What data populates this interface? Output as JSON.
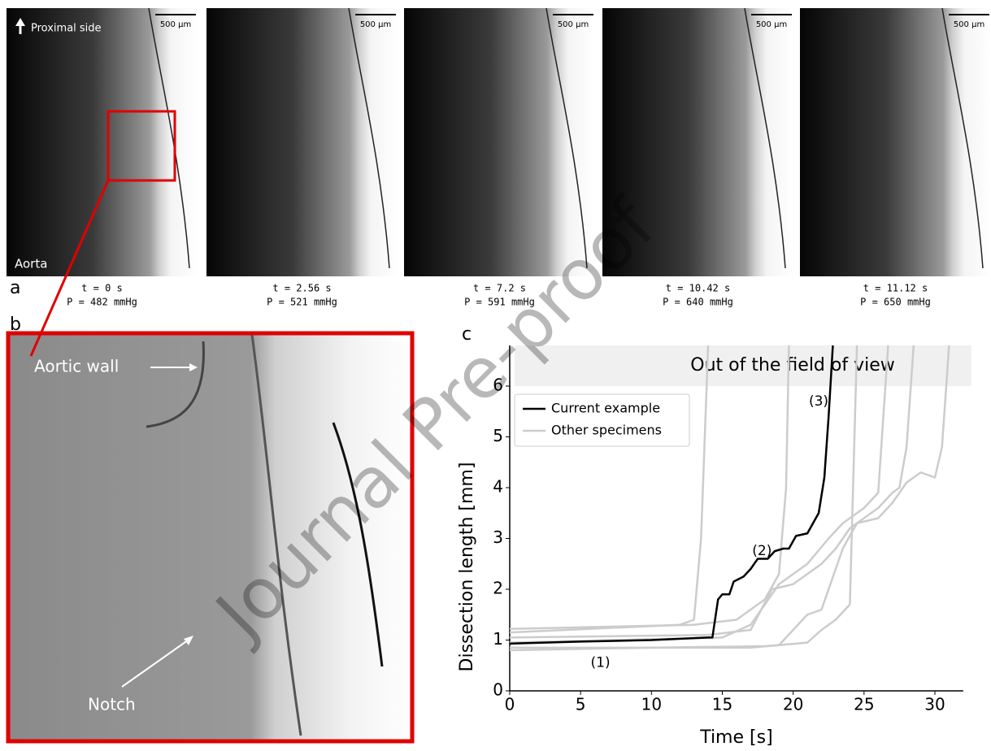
{
  "panel_a": {
    "label": "a",
    "direction_label": "Proximal side",
    "region_label": "Aorta",
    "frames": [
      {
        "scale_bar": "500 µm",
        "time": "t = 0 s",
        "pressure": "P = 482 mmHg"
      },
      {
        "scale_bar": "500 µm",
        "time": "t = 2.56 s",
        "pressure": "P = 521 mmHg"
      },
      {
        "scale_bar": "500 µm",
        "time": "t = 7.2 s",
        "pressure": "P = 591 mmHg"
      },
      {
        "scale_bar": "500 µm",
        "time": "t = 10.42 s",
        "pressure": "P = 640 mmHg"
      },
      {
        "scale_bar": "500 µm",
        "time": "t = 11.12 s",
        "pressure": "P = 650 mmHg"
      }
    ]
  },
  "panel_b": {
    "label": "b",
    "annotations": [
      "Aortic wall",
      "Notch"
    ]
  },
  "watermark": "Journal Pre-proof",
  "chart_data": {
    "type": "line",
    "panel_label": "c",
    "xlabel": "Time [s]",
    "ylabel": "Dissection length [mm]",
    "xlim": [
      0,
      32
    ],
    "ylim": [
      0,
      6.8
    ],
    "xticks": [
      0,
      5,
      10,
      15,
      20,
      25,
      30
    ],
    "yticks": [
      0,
      1,
      2,
      3,
      4,
      5,
      6
    ],
    "band_label": "Out of the field of view",
    "band_ylim": [
      6,
      6.8
    ],
    "legend": "upper left",
    "series": [
      {
        "name": "Other specimens",
        "color": "#cccccc",
        "x": [
          0,
          12,
          13,
          13.5,
          14
        ],
        "y": [
          1.15,
          1.3,
          1.4,
          3,
          6.8
        ]
      },
      {
        "name": "Other specimens",
        "color": "#cccccc",
        "x": [
          0,
          10,
          18,
          19,
          20,
          21,
          22,
          23.5,
          24.5,
          26,
          27,
          28,
          29,
          30,
          30.5,
          31
        ],
        "y": [
          0.8,
          0.85,
          0.88,
          0.9,
          1.2,
          1.5,
          1.6,
          2.8,
          3.3,
          3.4,
          3.7,
          4.1,
          4.3,
          4.2,
          4.8,
          6.8
        ]
      },
      {
        "name": "Other specimens",
        "color": "#cccccc",
        "x": [
          0,
          13,
          16,
          18,
          19,
          19.5,
          19.7
        ],
        "y": [
          1.22,
          1.3,
          1.4,
          1.8,
          2.3,
          4,
          6.8
        ]
      },
      {
        "name": "Other specimens",
        "color": "#cccccc",
        "x": [
          0,
          14,
          17,
          18.5,
          20,
          21,
          22,
          23,
          24,
          25,
          26,
          27,
          27.5,
          28,
          28.5
        ],
        "y": [
          1.05,
          1.1,
          1.2,
          2.0,
          2.1,
          2.3,
          2.5,
          2.8,
          3.2,
          3.4,
          3.6,
          3.9,
          4,
          4.8,
          6.8
        ]
      },
      {
        "name": "Other specimens",
        "color": "#cccccc",
        "x": [
          0,
          17,
          21,
          22,
          23,
          24,
          24.5
        ],
        "y": [
          0.85,
          0.85,
          0.95,
          1.2,
          1.4,
          1.7,
          6.8
        ]
      },
      {
        "name": "Other specimens",
        "color": "#cccccc",
        "x": [
          0,
          15,
          17,
          18,
          19,
          20,
          21,
          22.5,
          23.5,
          24,
          25,
          26,
          26.7
        ],
        "y": [
          0.95,
          1.05,
          1.3,
          1.7,
          2.1,
          2.3,
          2.5,
          3.0,
          3.3,
          3.4,
          3.6,
          3.9,
          6.8
        ]
      },
      {
        "name": "Current example",
        "color": "#000000",
        "x": [
          0,
          5,
          10,
          14,
          14.3,
          14.7,
          15,
          15.5,
          15.8,
          16.5,
          17,
          17.5,
          18.2,
          18.7,
          19.3,
          19.7,
          20.2,
          21,
          21.8,
          22.2,
          22.5,
          22.8
        ],
        "y": [
          0.93,
          0.97,
          1.0,
          1.05,
          1.05,
          1.8,
          1.9,
          1.9,
          2.15,
          2.25,
          2.4,
          2.6,
          2.6,
          2.75,
          2.8,
          2.8,
          3.05,
          3.1,
          3.5,
          4.2,
          5.4,
          6.8
        ]
      }
    ],
    "annotations": [
      {
        "text": "(1)",
        "x": 6.4,
        "y": 0.55
      },
      {
        "text": "(2)",
        "x": 17.8,
        "y": 2.75
      },
      {
        "text": "(3)",
        "x": 21.8,
        "y": 5.7
      }
    ]
  }
}
